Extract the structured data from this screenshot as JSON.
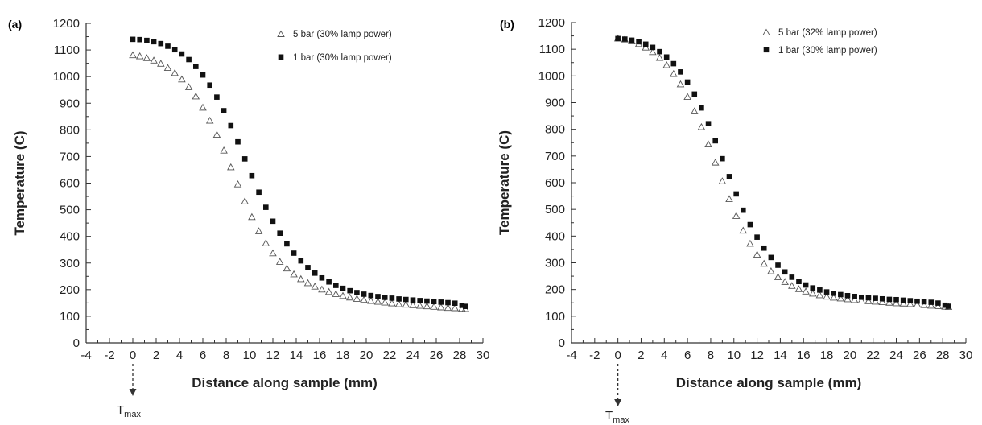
{
  "chart_data": [
    {
      "type": "scatter",
      "panel_label": "(a)",
      "xlabel": "Distance along sample (mm)",
      "ylabel": "Temperature (C)",
      "xlim": [
        -4,
        30
      ],
      "ylim": [
        0,
        1200
      ],
      "x_ticks": [
        -4,
        -2,
        0,
        2,
        4,
        6,
        8,
        10,
        12,
        14,
        16,
        18,
        20,
        22,
        24,
        26,
        28,
        30
      ],
      "y_ticks": [
        0,
        100,
        200,
        300,
        400,
        500,
        600,
        700,
        800,
        900,
        1000,
        1100,
        1200
      ],
      "grid": false,
      "legend_position": "top-right",
      "annotation": {
        "label": "T",
        "subscript": "max",
        "x": 0
      },
      "x": [
        0.0,
        0.6,
        1.2,
        1.8,
        2.4,
        3.0,
        3.6,
        4.2,
        4.8,
        5.4,
        6.0,
        6.6,
        7.2,
        7.8,
        8.4,
        9.0,
        9.6,
        10.2,
        10.8,
        11.4,
        12.0,
        12.6,
        13.2,
        13.8,
        14.4,
        15.0,
        15.6,
        16.2,
        16.8,
        17.4,
        18.0,
        18.6,
        19.2,
        19.8,
        20.4,
        21.0,
        21.6,
        22.2,
        22.8,
        23.4,
        24.0,
        24.6,
        25.2,
        25.8,
        26.4,
        27.0,
        27.6,
        28.2,
        28.5
      ],
      "series": [
        {
          "name": "5 bar (30% lamp power)",
          "marker": "triangle-open",
          "values": [
            1080,
            1076,
            1069,
            1060,
            1048,
            1032,
            1013,
            989,
            960,
            925,
            883,
            834,
            781,
            722,
            659,
            595,
            531,
            472,
            419,
            374,
            336,
            304,
            279,
            257,
            239,
            224,
            211,
            200,
            191,
            183,
            176,
            170,
            165,
            161,
            157,
            154,
            151,
            148,
            145,
            143,
            141,
            139,
            137,
            135,
            133,
            131,
            130,
            128,
            127
          ]
        },
        {
          "name": "1 bar (30% lamp power)",
          "marker": "square-filled",
          "values": [
            1140,
            1139,
            1136,
            1131,
            1124,
            1114,
            1101,
            1085,
            1064,
            1038,
            1006,
            968,
            923,
            872,
            816,
            755,
            691,
            628,
            566,
            509,
            457,
            412,
            372,
            337,
            308,
            283,
            262,
            244,
            229,
            216,
            205,
            196,
            189,
            183,
            178,
            174,
            171,
            168,
            165,
            163,
            161,
            159,
            157,
            155,
            153,
            151,
            149,
            141,
            137
          ]
        }
      ]
    },
    {
      "type": "scatter",
      "panel_label": "(b)",
      "xlabel": "Distance along sample (mm)",
      "ylabel": "Temperature (C)",
      "xlim": [
        -4,
        30
      ],
      "ylim": [
        0,
        1200
      ],
      "x_ticks": [
        -4,
        -2,
        0,
        2,
        4,
        6,
        8,
        10,
        12,
        14,
        16,
        18,
        20,
        22,
        24,
        26,
        28,
        30
      ],
      "y_ticks": [
        0,
        100,
        200,
        300,
        400,
        500,
        600,
        700,
        800,
        900,
        1000,
        1100,
        1200
      ],
      "grid": false,
      "legend_position": "top-right",
      "annotation": {
        "label": "T",
        "subscript": "max",
        "x": 0
      },
      "x": [
        0.0,
        0.6,
        1.2,
        1.8,
        2.4,
        3.0,
        3.6,
        4.2,
        4.8,
        5.4,
        6.0,
        6.6,
        7.2,
        7.8,
        8.4,
        9.0,
        9.6,
        10.2,
        10.8,
        11.4,
        12.0,
        12.6,
        13.2,
        13.8,
        14.4,
        15.0,
        15.6,
        16.2,
        16.8,
        17.4,
        18.0,
        18.6,
        19.2,
        19.8,
        20.4,
        21.0,
        21.6,
        22.2,
        22.8,
        23.4,
        24.0,
        24.6,
        25.2,
        25.8,
        26.4,
        27.0,
        27.6,
        28.2,
        28.5
      ],
      "series": [
        {
          "name": "5 bar (32% lamp power)",
          "marker": "triangle-open",
          "values": [
            1140,
            1136,
            1129,
            1119,
            1106,
            1089,
            1067,
            1040,
            1007,
            968,
            921,
            867,
            808,
            743,
            675,
            605,
            538,
            475,
            420,
            371,
            330,
            296,
            268,
            246,
            228,
            213,
            201,
            192,
            184,
            178,
            173,
            169,
            166,
            163,
            160,
            158,
            156,
            154,
            152,
            150,
            148,
            147,
            145,
            143,
            141,
            139,
            137,
            135,
            134
          ]
        },
        {
          "name": "1 bar (30% lamp power)",
          "marker": "square-filled",
          "values": [
            1140,
            1138,
            1134,
            1128,
            1119,
            1107,
            1091,
            1071,
            1046,
            1015,
            977,
            932,
            880,
            821,
            757,
            690,
            623,
            558,
            497,
            443,
            396,
            355,
            320,
            291,
            266,
            246,
            230,
            217,
            206,
            198,
            191,
            186,
            181,
            177,
            174,
            171,
            169,
            167,
            165,
            163,
            162,
            160,
            158,
            156,
            154,
            152,
            149,
            141,
            137
          ]
        }
      ]
    }
  ]
}
